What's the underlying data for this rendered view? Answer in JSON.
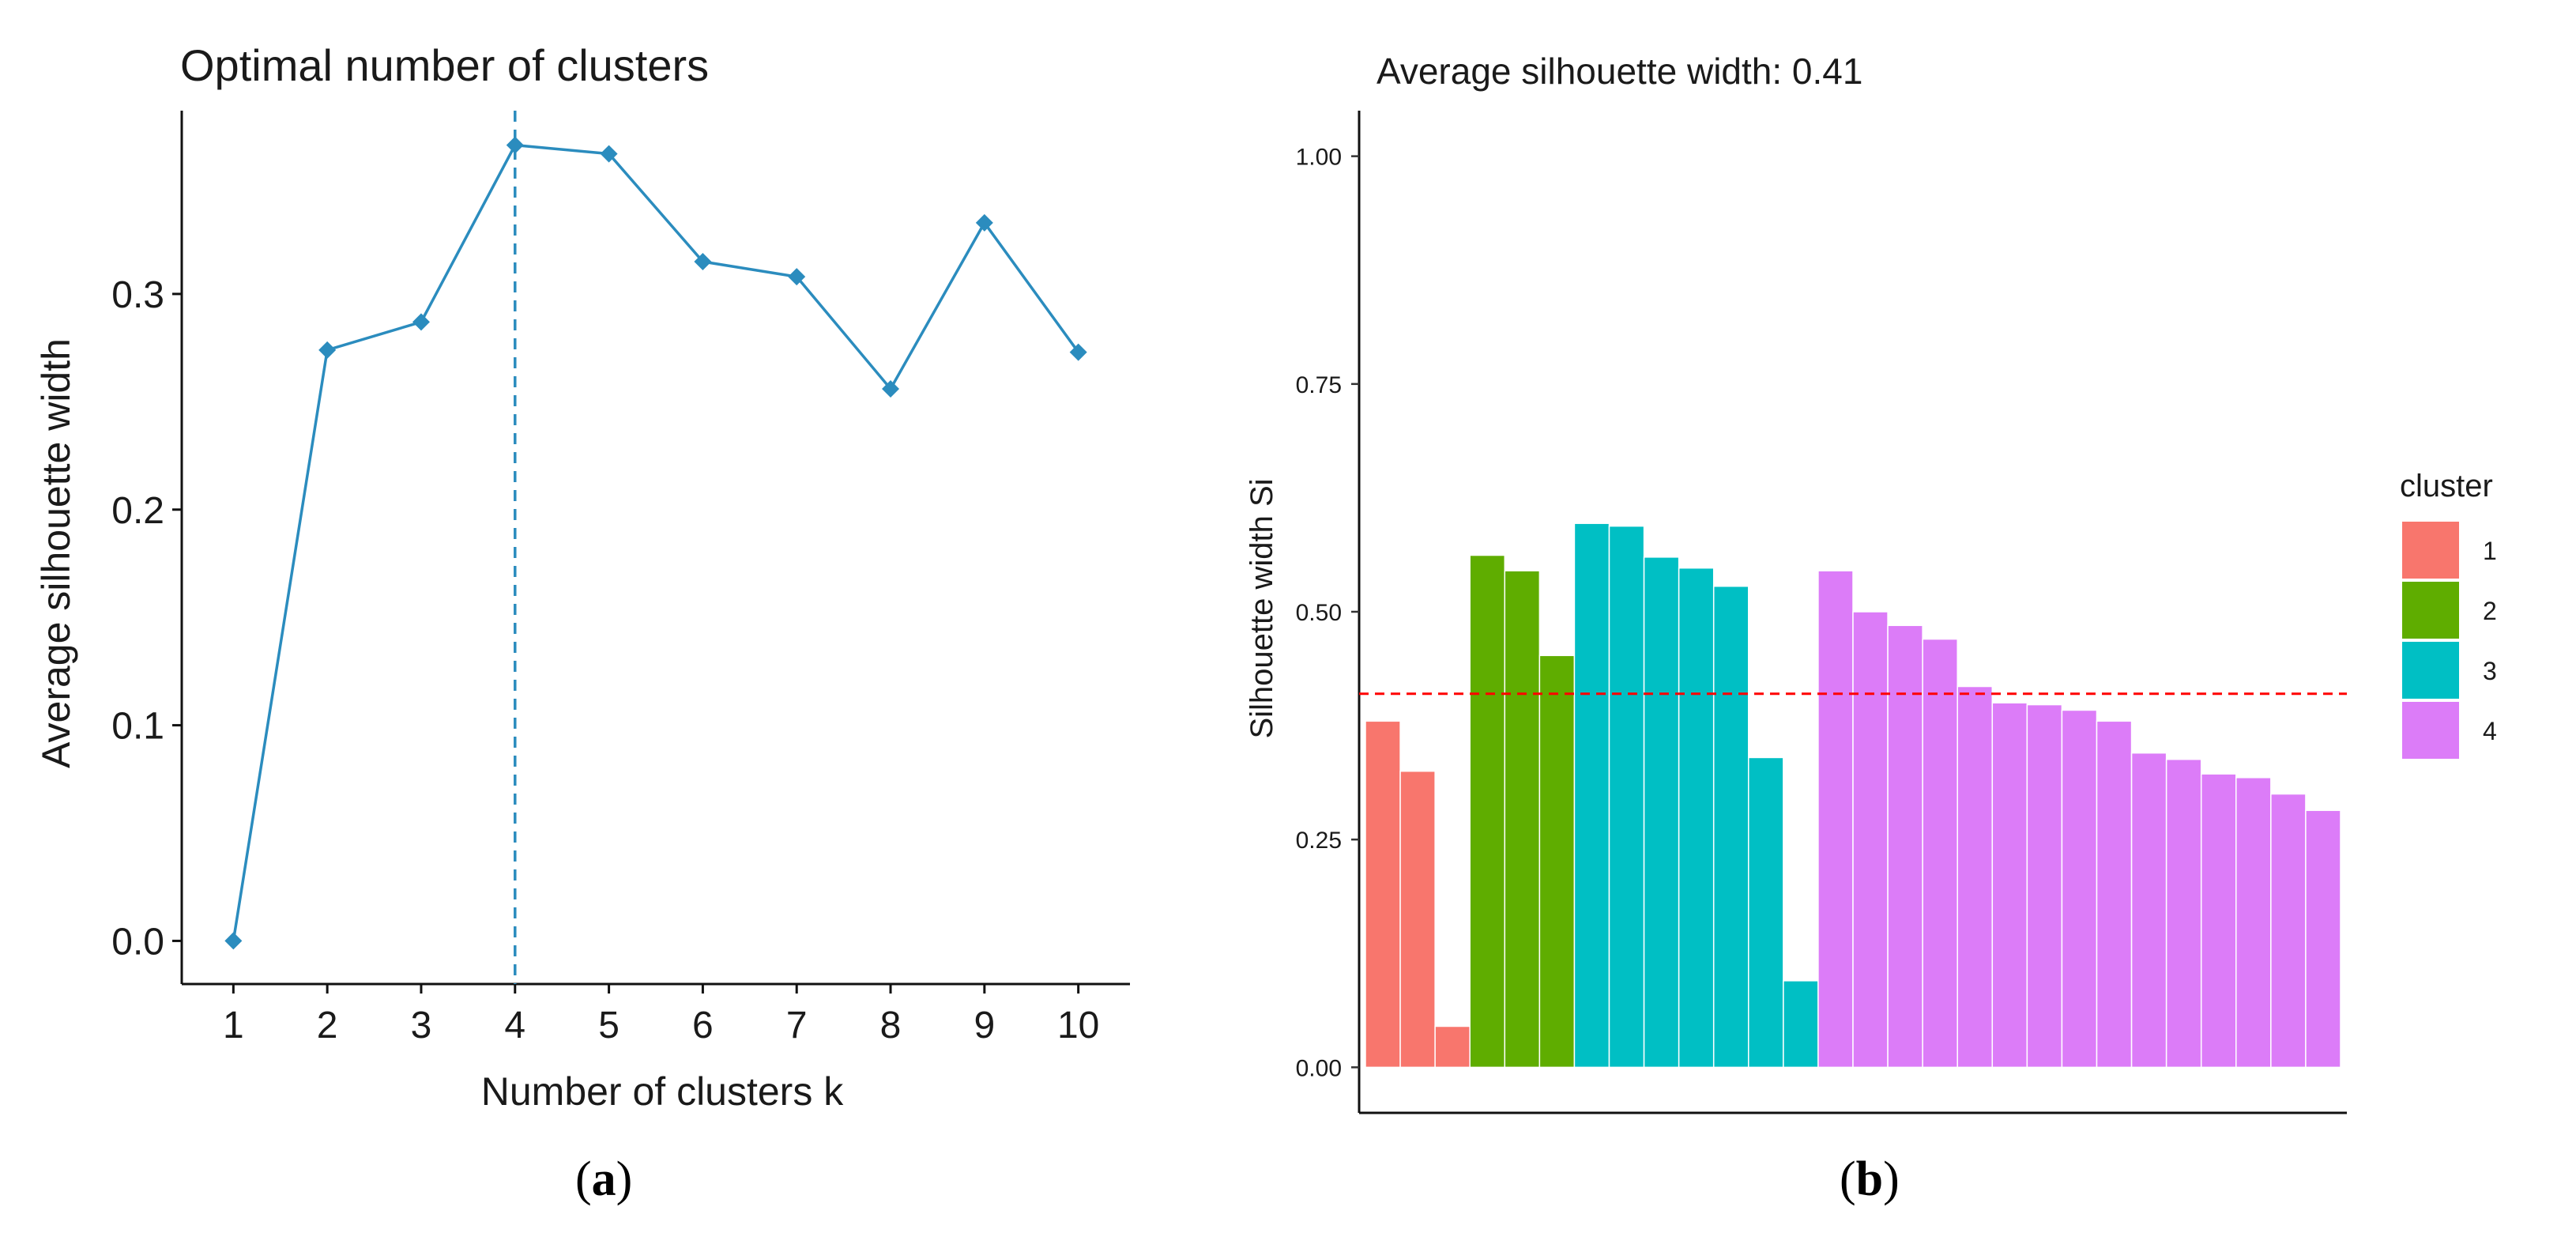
{
  "chart_data": [
    {
      "type": "line",
      "title": "Optimal number of clusters",
      "xlabel": "Number of clusters k",
      "ylabel": "Average silhouette width",
      "x": [
        1,
        2,
        3,
        4,
        5,
        6,
        7,
        8,
        9,
        10
      ],
      "values": [
        0.0,
        0.274,
        0.287,
        0.369,
        0.365,
        0.315,
        0.308,
        0.256,
        0.333,
        0.273
      ],
      "yticks": [
        "0.0",
        "0.1",
        "0.2",
        "0.3"
      ],
      "ytick_values": [
        0.0,
        0.1,
        0.2,
        0.3
      ],
      "ylim": [
        -0.02,
        0.385
      ],
      "optimal_k": 4,
      "line_color": "#2b8cbe",
      "caption": "(a)",
      "caption_letter": "a"
    },
    {
      "type": "bar",
      "title": "Average silhouette width: 0.41",
      "xlabel": "",
      "ylabel": "Silhouette width Si",
      "yticks": [
        "0.00",
        "0.25",
        "0.50",
        "0.75",
        "1.00"
      ],
      "ytick_values": [
        0.0,
        0.25,
        0.5,
        0.75,
        1.0
      ],
      "ylim": [
        -0.05,
        1.05
      ],
      "average": 0.41,
      "average_line_color": "#ff0000",
      "legend": {
        "title": "cluster",
        "entries": [
          {
            "label": "1",
            "color": "#f8766d"
          },
          {
            "label": "2",
            "color": "#5fad00"
          },
          {
            "label": "3",
            "color": "#00bfc4"
          },
          {
            "label": "4",
            "color": "#dc7cf8"
          }
        ]
      },
      "series": [
        {
          "name": "1",
          "values": [
            0.38,
            0.325,
            0.045
          ]
        },
        {
          "name": "2",
          "values": [
            0.562,
            0.545,
            0.452
          ]
        },
        {
          "name": "3",
          "values": [
            0.597,
            0.594,
            0.56,
            0.548,
            0.528,
            0.34,
            0.095
          ]
        },
        {
          "name": "4",
          "values": [
            0.545,
            0.5,
            0.485,
            0.47,
            0.418,
            0.4,
            0.398,
            0.392,
            0.38,
            0.345,
            0.338,
            0.322,
            0.318,
            0.3,
            0.282
          ]
        }
      ],
      "caption": "(b)",
      "caption_letter": "b"
    }
  ]
}
